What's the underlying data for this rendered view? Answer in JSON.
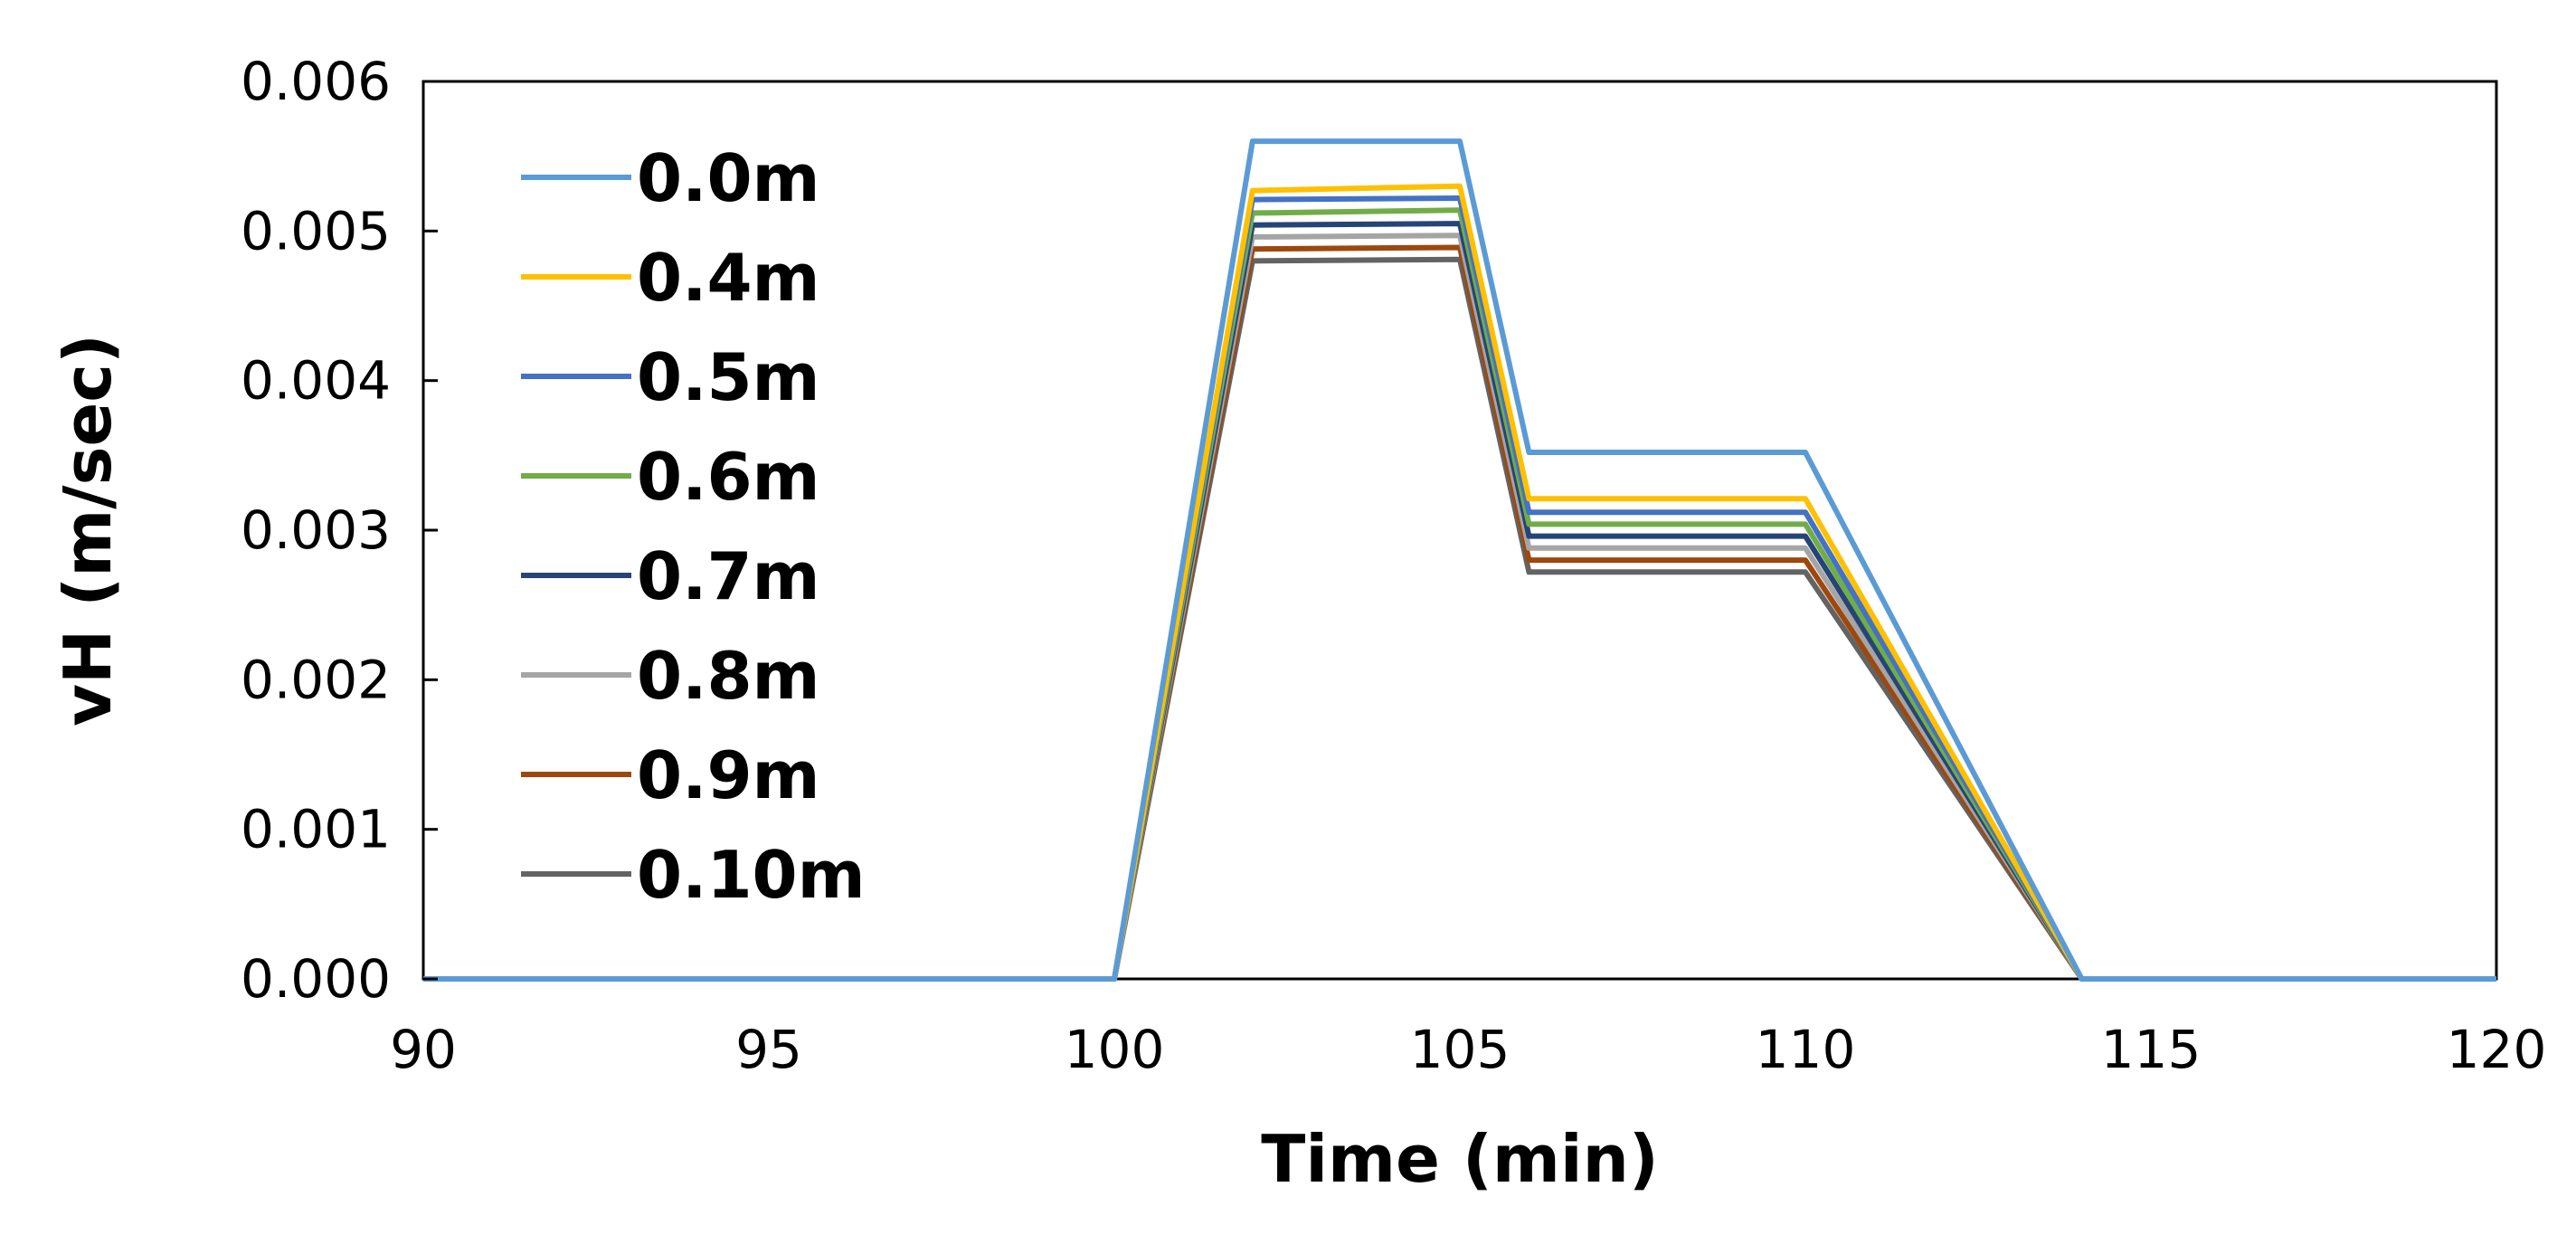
{
  "chart_data": {
    "type": "line",
    "xlabel": "Time (min)",
    "ylabel": "vH (m/sec)",
    "xlim": [
      90,
      120
    ],
    "ylim": [
      0,
      0.006
    ],
    "xticks": [
      "90",
      "95",
      "100",
      "105",
      "110",
      "115",
      "120"
    ],
    "yticks": [
      "0.000",
      "0.001",
      "0.002",
      "0.003",
      "0.004",
      "0.005",
      "0.006"
    ],
    "grid": false,
    "legend_position": "top-left inside",
    "x": [
      90,
      100,
      102,
      105,
      106,
      110,
      114,
      120
    ],
    "series": [
      {
        "name": "0.0m",
        "color": "#5B9BD5",
        "values": [
          0,
          0,
          0.0056,
          0.0056,
          0.00352,
          0.00352,
          0,
          0
        ]
      },
      {
        "name": "0.4m",
        "color": "#FFC000",
        "values": [
          0,
          0,
          0.00527,
          0.0053,
          0.00321,
          0.00321,
          0,
          0
        ]
      },
      {
        "name": "0.5m",
        "color": "#4472C4",
        "values": [
          0,
          0,
          0.00521,
          0.00522,
          0.00312,
          0.00312,
          0,
          0
        ]
      },
      {
        "name": "0.6m",
        "color": "#70AD47",
        "values": [
          0,
          0,
          0.00512,
          0.00514,
          0.00304,
          0.00304,
          0,
          0
        ]
      },
      {
        "name": "0.7m",
        "color": "#264478",
        "values": [
          0,
          0,
          0.00504,
          0.00505,
          0.00296,
          0.00296,
          0,
          0
        ]
      },
      {
        "name": "0.8m",
        "color": "#A5A5A5",
        "values": [
          0,
          0,
          0.00496,
          0.00497,
          0.00288,
          0.00288,
          0,
          0
        ]
      },
      {
        "name": "0.9m",
        "color": "#9E480E",
        "values": [
          0,
          0,
          0.00488,
          0.00489,
          0.0028,
          0.0028,
          0,
          0
        ]
      },
      {
        "name": "0.10m",
        "color": "#636363",
        "values": [
          0,
          0,
          0.0048,
          0.00481,
          0.00272,
          0.00272,
          0,
          0
        ]
      }
    ]
  }
}
